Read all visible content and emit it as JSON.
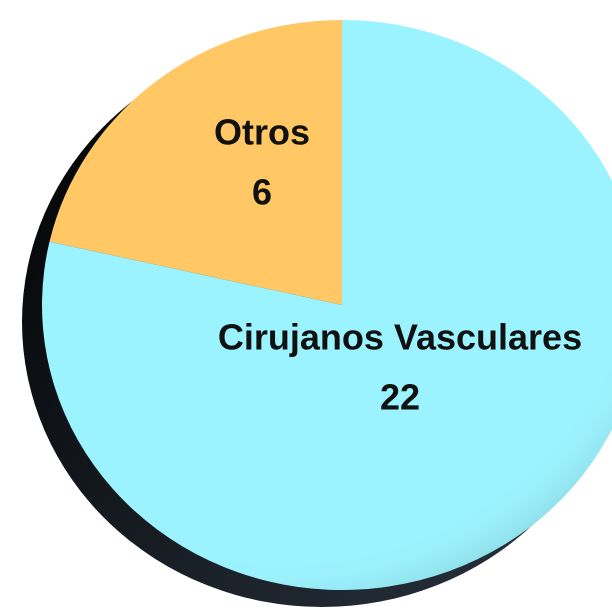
{
  "chart_data": {
    "type": "pie",
    "categories": [
      "Cirujanos Vasculares",
      "Otros"
    ],
    "values": [
      22,
      6
    ],
    "colors": [
      "#9af3ff",
      "#ffc865"
    ]
  }
}
